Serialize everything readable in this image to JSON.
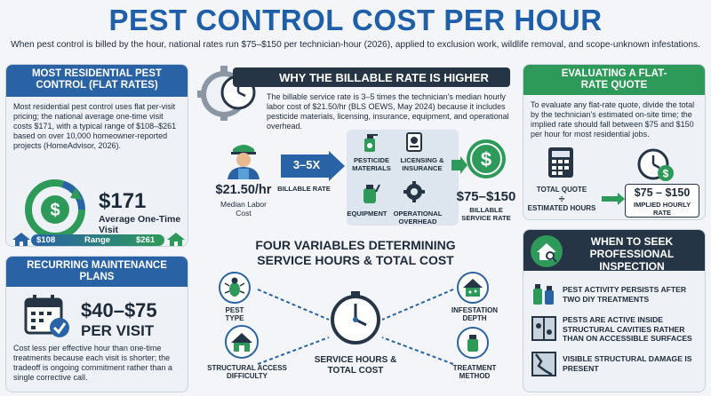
{
  "header": {
    "title": "PEST CONTROL COST PER HOUR",
    "subtitle": "When pest control is billed by the hour, national rates run $75–$150 per technician-hour (2026), applied to exclusion work, wildlife removal, and scope-unknown infestations."
  },
  "flat": {
    "heading": "MOST RESIDENTIAL PEST CONTROL (FLAT RATES)",
    "body": "Most residential pest control uses flat per-visit pricing; the national average one-time visit costs $171, with a typical range of $108–$261 based on over 10,000 homeowner-reported projects (HomeAdvisor, 2026).",
    "amount": "$171",
    "amount_label": "Average One-Time Visit",
    "range_low": "$108",
    "range_label": "Range",
    "range_high": "$261"
  },
  "recurring": {
    "heading": "RECURRING MAINTENANCE PLANS",
    "amount": "$40–$75",
    "per": "PER VISIT",
    "body": "Cost less per effective hour than one-time treatments because each visit is shorter; the tradeoff is ongoing commitment rather than a single corrective call."
  },
  "billable": {
    "heading": "WHY THE BILLABLE RATE IS HIGHER",
    "body": "The billable service rate is 3–5 times the technician's median hourly labor cost of $21.50/hr (BLS OEWS, May 2024) because it includes pesticide materials, licensing, insurance, equipment, and operational overhead.",
    "labor_value": "$21.50/hr",
    "labor_label": "Median Labor Cost",
    "multiplier": "3–5X",
    "multiplier_label": "BILLABLE RATE",
    "components": [
      "PESTICIDE MATERIALS",
      "LICENSING & INSURANCE",
      "EQUIPMENT",
      "OPERATIONAL OVERHEAD"
    ],
    "service_value": "$75–$150",
    "service_label": "BILLABLE SERVICE RATE"
  },
  "variables": {
    "heading_line1": "FOUR VARIABLES DETERMINING",
    "heading_line2": "SERVICE HOURS & TOTAL COST",
    "center_label": "SERVICE HOURS & TOTAL COST",
    "pest_type": "PEST TYPE",
    "structural_access": "STRUCTURAL ACCESS DIFFICULTY",
    "infestation_depth": "INFESTATION DEPTH",
    "treatment_method": "TREATMENT METHOD"
  },
  "evaluate": {
    "heading": "EVALUATING A FLAT-RATE QUOTE",
    "body": "To evaluate any flat-rate quote, divide the total by the technician's estimated on-site time; the implied rate should fall between $75 and $150 per hour for most residential jobs.",
    "total_quote": "TOTAL QUOTE",
    "divide": "÷",
    "estimated_hours": "ESTIMATED HOURS",
    "implied_value": "$75 – $150",
    "implied_label": "IMPLIED HOURLY RATE"
  },
  "inspection": {
    "heading": "WHEN TO SEEK PROFESSIONAL INSPECTION",
    "items": [
      "PEST ACTIVITY PERSISTS AFTER TWO DIY TREATMENTS",
      "PESTS ARE ACTIVE INSIDE STRUCTURAL CAVITIES RATHER THAN ON ACCESSIBLE SURFACES",
      "VISIBLE STRUCTURAL DAMAGE IS PRESENT"
    ]
  },
  "colors": {
    "blue": "#2a62a6",
    "green": "#2e9a5a",
    "dark": "#263546",
    "title": "#1f5ea8"
  }
}
